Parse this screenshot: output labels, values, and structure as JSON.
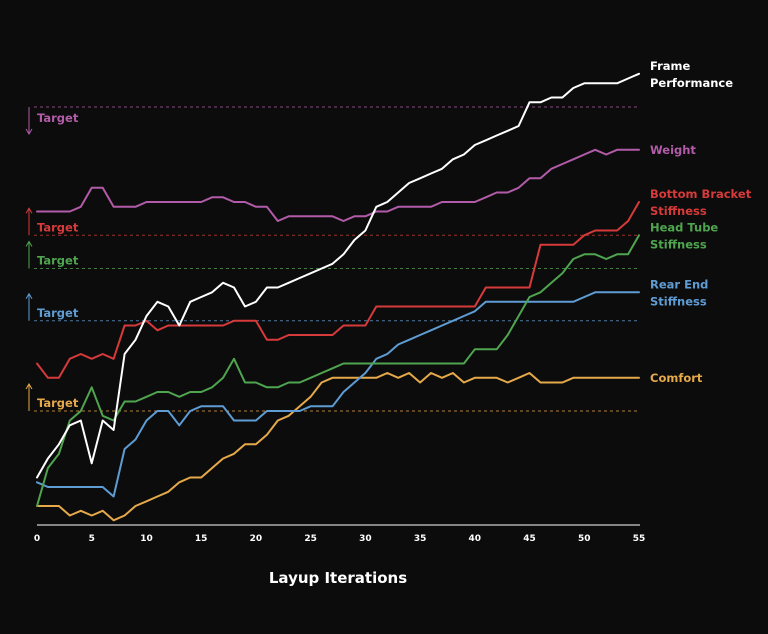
{
  "chart_data": {
    "type": "line",
    "xlabel": "Layup Iterations",
    "ylabel": "",
    "xlim": [
      0,
      55
    ],
    "ylim": [
      0,
      100
    ],
    "x_ticks": [
      0,
      5,
      10,
      15,
      20,
      25,
      30,
      35,
      40,
      45,
      50,
      55
    ],
    "grid": false,
    "legend": "labels at right end of each line",
    "target_label": "Target",
    "series": [
      {
        "name": "Frame Performance",
        "label_lines": [
          "Frame",
          "Performance"
        ],
        "color": "#ffffff",
        "values": [
          10,
          14,
          17,
          21,
          22,
          13,
          22,
          20,
          36,
          39,
          44,
          47,
          46,
          42,
          47,
          48,
          49,
          51,
          50,
          46,
          47,
          50,
          50,
          51,
          52,
          53,
          54,
          55,
          57,
          60,
          62,
          67,
          68,
          70,
          72,
          73,
          74,
          75,
          77,
          78,
          80,
          81,
          82,
          83,
          84,
          89,
          89,
          90,
          90,
          92,
          93,
          93,
          93,
          93,
          94,
          95
        ]
      },
      {
        "name": "Weight",
        "label_lines": [
          "Weight"
        ],
        "color": "#b15ba9",
        "target": 88,
        "target_arrow": "down",
        "values": [
          66,
          66,
          66,
          66,
          67,
          71,
          71,
          67,
          67,
          67,
          68,
          68,
          68,
          68,
          68,
          68,
          69,
          69,
          68,
          68,
          67,
          67,
          64,
          65,
          65,
          65,
          65,
          65,
          64,
          65,
          65,
          66,
          66,
          67,
          67,
          67,
          67,
          68,
          68,
          68,
          68,
          69,
          70,
          70,
          71,
          73,
          73,
          75,
          76,
          77,
          78,
          79,
          78,
          79,
          79,
          79
        ]
      },
      {
        "name": "Bottom Bracket Stiffness",
        "label_lines": [
          "Bottom Bracket",
          "Stiffness"
        ],
        "color": "#d63a3a",
        "target": 61,
        "target_arrow": "up",
        "values": [
          34,
          31,
          31,
          35,
          36,
          35,
          36,
          35,
          42,
          42,
          43,
          41,
          42,
          42,
          42,
          42,
          42,
          42,
          43,
          43,
          43,
          39,
          39,
          40,
          40,
          40,
          40,
          40,
          42,
          42,
          42,
          46,
          46,
          46,
          46,
          46,
          46,
          46,
          46,
          46,
          46,
          50,
          50,
          50,
          50,
          50,
          59,
          59,
          59,
          59,
          61,
          62,
          62,
          62,
          64,
          68
        ]
      },
      {
        "name": "Head Tube Stiffness",
        "label_lines": [
          "Head Tube",
          "Stiffness"
        ],
        "color": "#4fa54f",
        "target": 54,
        "target_arrow": "up",
        "values": [
          4,
          12,
          15,
          22,
          24,
          29,
          23,
          22,
          26,
          26,
          27,
          28,
          28,
          27,
          28,
          28,
          29,
          31,
          35,
          30,
          30,
          29,
          29,
          30,
          30,
          31,
          32,
          33,
          34,
          34,
          34,
          34,
          34,
          34,
          34,
          34,
          34,
          34,
          34,
          34,
          37,
          37,
          37,
          40,
          44,
          48,
          49,
          51,
          53,
          56,
          57,
          57,
          56,
          57,
          57,
          61
        ]
      },
      {
        "name": "Rear End Stiffness",
        "label_lines": [
          "Rear End",
          "Stiffness"
        ],
        "color": "#5e9cd3",
        "target": 43,
        "target_arrow": "up",
        "values": [
          9,
          8,
          8,
          8,
          8,
          8,
          8,
          6,
          16,
          18,
          22,
          24,
          24,
          21,
          24,
          25,
          25,
          25,
          22,
          22,
          22,
          24,
          24,
          24,
          24,
          25,
          25,
          25,
          28,
          30,
          32,
          35,
          36,
          38,
          39,
          40,
          41,
          42,
          43,
          44,
          45,
          47,
          47,
          47,
          47,
          47,
          47,
          47,
          47,
          47,
          48,
          49,
          49,
          49,
          49,
          49
        ]
      },
      {
        "name": "Comfort",
        "label_lines": [
          "Comfort"
        ],
        "color": "#e6a94a",
        "target": 24,
        "target_arrow": "up",
        "values": [
          4,
          4,
          4,
          2,
          3,
          2,
          3,
          1,
          2,
          4,
          5,
          6,
          7,
          9,
          10,
          10,
          12,
          14,
          15,
          17,
          17,
          19,
          22,
          23,
          25,
          27,
          30,
          31,
          31,
          31,
          31,
          31,
          32,
          31,
          32,
          30,
          32,
          31,
          32,
          30,
          31,
          31,
          31,
          30,
          31,
          32,
          30,
          30,
          30,
          31,
          31,
          31,
          31,
          31,
          31,
          31
        ]
      }
    ]
  }
}
